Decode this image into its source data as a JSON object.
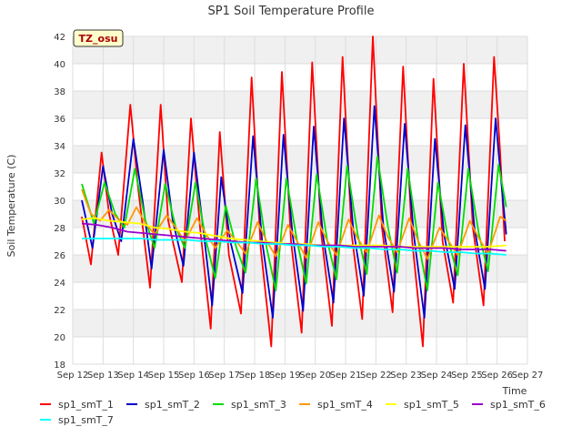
{
  "chart_data": {
    "type": "line",
    "title": "SP1 Soil Temperature Profile",
    "xlabel": "Time",
    "ylabel": "Soil Temperature (C)",
    "site_badge": "TZ_osu",
    "xlim": [
      12,
      27
    ],
    "ylim": [
      18,
      42
    ],
    "y_ticks": [
      18,
      20,
      22,
      24,
      26,
      28,
      30,
      32,
      34,
      36,
      38,
      40,
      42
    ],
    "x_ticks": [
      {
        "value": 12,
        "label": "Sep 12"
      },
      {
        "value": 13,
        "label": "Sep 13"
      },
      {
        "value": 14,
        "label": "Sep 14"
      },
      {
        "value": 15,
        "label": "Sep 15"
      },
      {
        "value": 16,
        "label": "Sep 16"
      },
      {
        "value": 17,
        "label": "Sep 17"
      },
      {
        "value": 18,
        "label": "Sep 18"
      },
      {
        "value": 19,
        "label": "Sep 19"
      },
      {
        "value": 20,
        "label": "Sep 20"
      },
      {
        "value": 21,
        "label": "Sep 21"
      },
      {
        "value": 22,
        "label": "Sep 22"
      },
      {
        "value": 23,
        "label": "Sep 23"
      },
      {
        "value": 24,
        "label": "Sep 24"
      },
      {
        "value": 25,
        "label": "Sep 25"
      },
      {
        "value": 26,
        "label": "Sep 26"
      },
      {
        "value": 27,
        "label": "Sep 27"
      }
    ],
    "legend_position": "bottom",
    "series": [
      {
        "name": "sp1_smT_1",
        "color": "#ff0000",
        "points": [
          [
            12.3,
            28.8
          ],
          [
            12.6,
            25.3
          ],
          [
            12.95,
            33.5
          ],
          [
            13.2,
            29.0
          ],
          [
            13.5,
            26.0
          ],
          [
            13.9,
            37.0
          ],
          [
            14.15,
            31.0
          ],
          [
            14.55,
            23.6
          ],
          [
            14.9,
            37.0
          ],
          [
            15.15,
            28.5
          ],
          [
            15.6,
            24.0
          ],
          [
            15.9,
            36.0
          ],
          [
            16.2,
            28.0
          ],
          [
            16.55,
            20.6
          ],
          [
            16.85,
            35.0
          ],
          [
            17.15,
            26.0
          ],
          [
            17.55,
            21.7
          ],
          [
            17.9,
            39.0
          ],
          [
            18.2,
            26.5
          ],
          [
            18.55,
            19.3
          ],
          [
            18.9,
            39.4
          ],
          [
            19.2,
            27.0
          ],
          [
            19.55,
            20.3
          ],
          [
            19.9,
            40.1
          ],
          [
            20.2,
            27.5
          ],
          [
            20.55,
            20.8
          ],
          [
            20.9,
            40.5
          ],
          [
            21.2,
            27.5
          ],
          [
            21.55,
            21.3
          ],
          [
            21.9,
            42.0
          ],
          [
            22.2,
            28.0
          ],
          [
            22.55,
            21.8
          ],
          [
            22.9,
            39.8
          ],
          [
            23.2,
            27.0
          ],
          [
            23.55,
            19.3
          ],
          [
            23.9,
            38.9
          ],
          [
            24.2,
            27.0
          ],
          [
            24.55,
            22.5
          ],
          [
            24.9,
            40.0
          ],
          [
            25.2,
            28.0
          ],
          [
            25.55,
            22.3
          ],
          [
            25.9,
            40.5
          ],
          [
            26.1,
            33.5
          ],
          [
            26.25,
            27.0
          ]
        ]
      },
      {
        "name": "sp1_smT_2",
        "color": "#0000cc",
        "points": [
          [
            12.3,
            30.0
          ],
          [
            12.65,
            26.5
          ],
          [
            13.0,
            32.5
          ],
          [
            13.3,
            29.0
          ],
          [
            13.6,
            27.0
          ],
          [
            14.0,
            34.5
          ],
          [
            14.3,
            30.0
          ],
          [
            14.6,
            25.0
          ],
          [
            15.0,
            33.7
          ],
          [
            15.3,
            28.5
          ],
          [
            15.65,
            25.2
          ],
          [
            16.0,
            33.5
          ],
          [
            16.3,
            28.0
          ],
          [
            16.6,
            22.3
          ],
          [
            16.9,
            31.7
          ],
          [
            17.2,
            27.0
          ],
          [
            17.6,
            23.2
          ],
          [
            17.95,
            34.7
          ],
          [
            18.25,
            27.0
          ],
          [
            18.6,
            21.4
          ],
          [
            18.95,
            34.8
          ],
          [
            19.25,
            27.5
          ],
          [
            19.6,
            21.9
          ],
          [
            19.95,
            35.4
          ],
          [
            20.25,
            27.5
          ],
          [
            20.6,
            22.5
          ],
          [
            20.95,
            36.0
          ],
          [
            21.25,
            28.0
          ],
          [
            21.6,
            23.0
          ],
          [
            21.95,
            36.9
          ],
          [
            22.25,
            28.0
          ],
          [
            22.6,
            23.3
          ],
          [
            22.95,
            35.6
          ],
          [
            23.25,
            27.5
          ],
          [
            23.6,
            21.4
          ],
          [
            23.95,
            34.5
          ],
          [
            24.25,
            27.5
          ],
          [
            24.6,
            23.5
          ],
          [
            24.95,
            35.5
          ],
          [
            25.25,
            28.0
          ],
          [
            25.6,
            23.5
          ],
          [
            25.95,
            36.0
          ],
          [
            26.15,
            31.0
          ],
          [
            26.3,
            27.5
          ]
        ]
      },
      {
        "name": "sp1_smT_3",
        "color": "#00dd00",
        "points": [
          [
            12.3,
            31.2
          ],
          [
            12.7,
            28.3
          ],
          [
            13.05,
            31.3
          ],
          [
            13.4,
            29.0
          ],
          [
            13.7,
            28.0
          ],
          [
            14.05,
            32.3
          ],
          [
            14.4,
            28.5
          ],
          [
            14.7,
            26.5
          ],
          [
            15.05,
            31.2
          ],
          [
            15.4,
            28.0
          ],
          [
            15.7,
            26.5
          ],
          [
            16.05,
            31.3
          ],
          [
            16.4,
            27.0
          ],
          [
            16.7,
            24.3
          ],
          [
            17.05,
            29.6
          ],
          [
            17.4,
            26.5
          ],
          [
            17.7,
            24.7
          ],
          [
            18.05,
            31.6
          ],
          [
            18.4,
            26.5
          ],
          [
            18.7,
            23.4
          ],
          [
            19.05,
            31.6
          ],
          [
            19.4,
            27.0
          ],
          [
            19.7,
            23.9
          ],
          [
            20.05,
            31.9
          ],
          [
            20.4,
            27.0
          ],
          [
            20.7,
            24.2
          ],
          [
            21.05,
            32.5
          ],
          [
            21.4,
            27.5
          ],
          [
            21.7,
            24.6
          ],
          [
            22.05,
            33.2
          ],
          [
            22.4,
            28.0
          ],
          [
            22.7,
            24.7
          ],
          [
            23.05,
            32.3
          ],
          [
            23.4,
            27.0
          ],
          [
            23.7,
            23.4
          ],
          [
            24.05,
            31.3
          ],
          [
            24.4,
            27.0
          ],
          [
            24.7,
            24.5
          ],
          [
            25.05,
            32.3
          ],
          [
            25.4,
            27.5
          ],
          [
            25.7,
            24.8
          ],
          [
            26.05,
            32.6
          ],
          [
            26.3,
            29.5
          ]
        ]
      },
      {
        "name": "sp1_smT_4",
        "color": "#ff9900",
        "points": [
          [
            12.3,
            30.8
          ],
          [
            12.6,
            29.0
          ],
          [
            12.9,
            28.5
          ],
          [
            13.2,
            29.3
          ],
          [
            13.5,
            28.6
          ],
          [
            13.8,
            28.2
          ],
          [
            14.1,
            29.5
          ],
          [
            14.4,
            28.3
          ],
          [
            14.7,
            27.5
          ],
          [
            15.1,
            28.9
          ],
          [
            15.4,
            28.0
          ],
          [
            15.7,
            27.0
          ],
          [
            16.1,
            28.7
          ],
          [
            16.4,
            27.5
          ],
          [
            16.7,
            26.5
          ],
          [
            17.1,
            27.8
          ],
          [
            17.4,
            27.0
          ],
          [
            17.7,
            26.1
          ],
          [
            18.1,
            28.4
          ],
          [
            18.4,
            27.0
          ],
          [
            18.7,
            25.9
          ],
          [
            19.1,
            28.2
          ],
          [
            19.4,
            27.0
          ],
          [
            19.7,
            25.8
          ],
          [
            20.1,
            28.4
          ],
          [
            20.4,
            27.0
          ],
          [
            20.7,
            26.0
          ],
          [
            21.1,
            28.6
          ],
          [
            21.4,
            27.2
          ],
          [
            21.7,
            26.2
          ],
          [
            22.1,
            28.9
          ],
          [
            22.4,
            27.3
          ],
          [
            22.7,
            26.2
          ],
          [
            23.1,
            28.7
          ],
          [
            23.4,
            27.0
          ],
          [
            23.7,
            25.7
          ],
          [
            24.1,
            28.0
          ],
          [
            24.4,
            27.0
          ],
          [
            24.7,
            26.0
          ],
          [
            25.1,
            28.5
          ],
          [
            25.4,
            27.2
          ],
          [
            25.7,
            26.1
          ],
          [
            26.1,
            28.8
          ],
          [
            26.3,
            28.5
          ]
        ]
      },
      {
        "name": "sp1_smT_5",
        "color": "#ffff00",
        "points": [
          [
            12.3,
            28.6
          ],
          [
            12.7,
            28.7
          ],
          [
            13.2,
            28.5
          ],
          [
            13.7,
            28.4
          ],
          [
            14.2,
            28.3
          ],
          [
            14.7,
            28.0
          ],
          [
            15.2,
            27.9
          ],
          [
            15.7,
            27.7
          ],
          [
            16.2,
            27.6
          ],
          [
            16.7,
            27.4
          ],
          [
            17.2,
            27.2
          ],
          [
            17.7,
            27.1
          ],
          [
            18.2,
            27.0
          ],
          [
            18.7,
            26.9
          ],
          [
            19.2,
            26.8
          ],
          [
            19.7,
            26.8
          ],
          [
            20.2,
            26.7
          ],
          [
            20.7,
            26.7
          ],
          [
            21.2,
            26.7
          ],
          [
            21.7,
            26.7
          ],
          [
            22.2,
            26.7
          ],
          [
            22.7,
            26.6
          ],
          [
            23.2,
            26.6
          ],
          [
            23.7,
            26.6
          ],
          [
            24.2,
            26.6
          ],
          [
            24.7,
            26.6
          ],
          [
            25.2,
            26.6
          ],
          [
            25.7,
            26.6
          ],
          [
            26.3,
            26.7
          ]
        ]
      },
      {
        "name": "sp1_smT_6",
        "color": "#9900cc",
        "points": [
          [
            12.3,
            28.3
          ],
          [
            12.8,
            28.2
          ],
          [
            13.3,
            28.0
          ],
          [
            13.8,
            27.7
          ],
          [
            14.3,
            27.6
          ],
          [
            14.8,
            27.5
          ],
          [
            15.3,
            27.4
          ],
          [
            15.8,
            27.3
          ],
          [
            16.3,
            27.2
          ],
          [
            16.8,
            27.1
          ],
          [
            17.3,
            27.0
          ],
          [
            17.8,
            26.9
          ],
          [
            18.3,
            26.9
          ],
          [
            18.8,
            26.8
          ],
          [
            19.3,
            26.8
          ],
          [
            19.8,
            26.7
          ],
          [
            20.3,
            26.7
          ],
          [
            20.8,
            26.7
          ],
          [
            21.3,
            26.6
          ],
          [
            21.8,
            26.6
          ],
          [
            22.3,
            26.6
          ],
          [
            22.8,
            26.6
          ],
          [
            23.3,
            26.5
          ],
          [
            23.8,
            26.5
          ],
          [
            24.3,
            26.5
          ],
          [
            24.8,
            26.4
          ],
          [
            25.3,
            26.4
          ],
          [
            25.8,
            26.4
          ],
          [
            26.3,
            26.3
          ]
        ]
      },
      {
        "name": "sp1_smT_7",
        "color": "#00ffff",
        "points": [
          [
            12.3,
            27.2
          ],
          [
            12.8,
            27.2
          ],
          [
            13.3,
            27.2
          ],
          [
            13.8,
            27.2
          ],
          [
            14.3,
            27.2
          ],
          [
            14.8,
            27.1
          ],
          [
            15.3,
            27.1
          ],
          [
            15.8,
            27.1
          ],
          [
            16.3,
            27.0
          ],
          [
            16.8,
            27.0
          ],
          [
            17.3,
            26.9
          ],
          [
            17.8,
            26.9
          ],
          [
            18.3,
            26.8
          ],
          [
            18.8,
            26.8
          ],
          [
            19.3,
            26.7
          ],
          [
            19.8,
            26.7
          ],
          [
            20.3,
            26.6
          ],
          [
            20.8,
            26.6
          ],
          [
            21.3,
            26.5
          ],
          [
            21.8,
            26.5
          ],
          [
            22.3,
            26.4
          ],
          [
            22.8,
            26.4
          ],
          [
            23.3,
            26.3
          ],
          [
            23.8,
            26.3
          ],
          [
            24.3,
            26.2
          ],
          [
            24.8,
            26.2
          ],
          [
            25.3,
            26.1
          ],
          [
            25.8,
            26.1
          ],
          [
            26.3,
            26.0
          ]
        ]
      }
    ]
  }
}
